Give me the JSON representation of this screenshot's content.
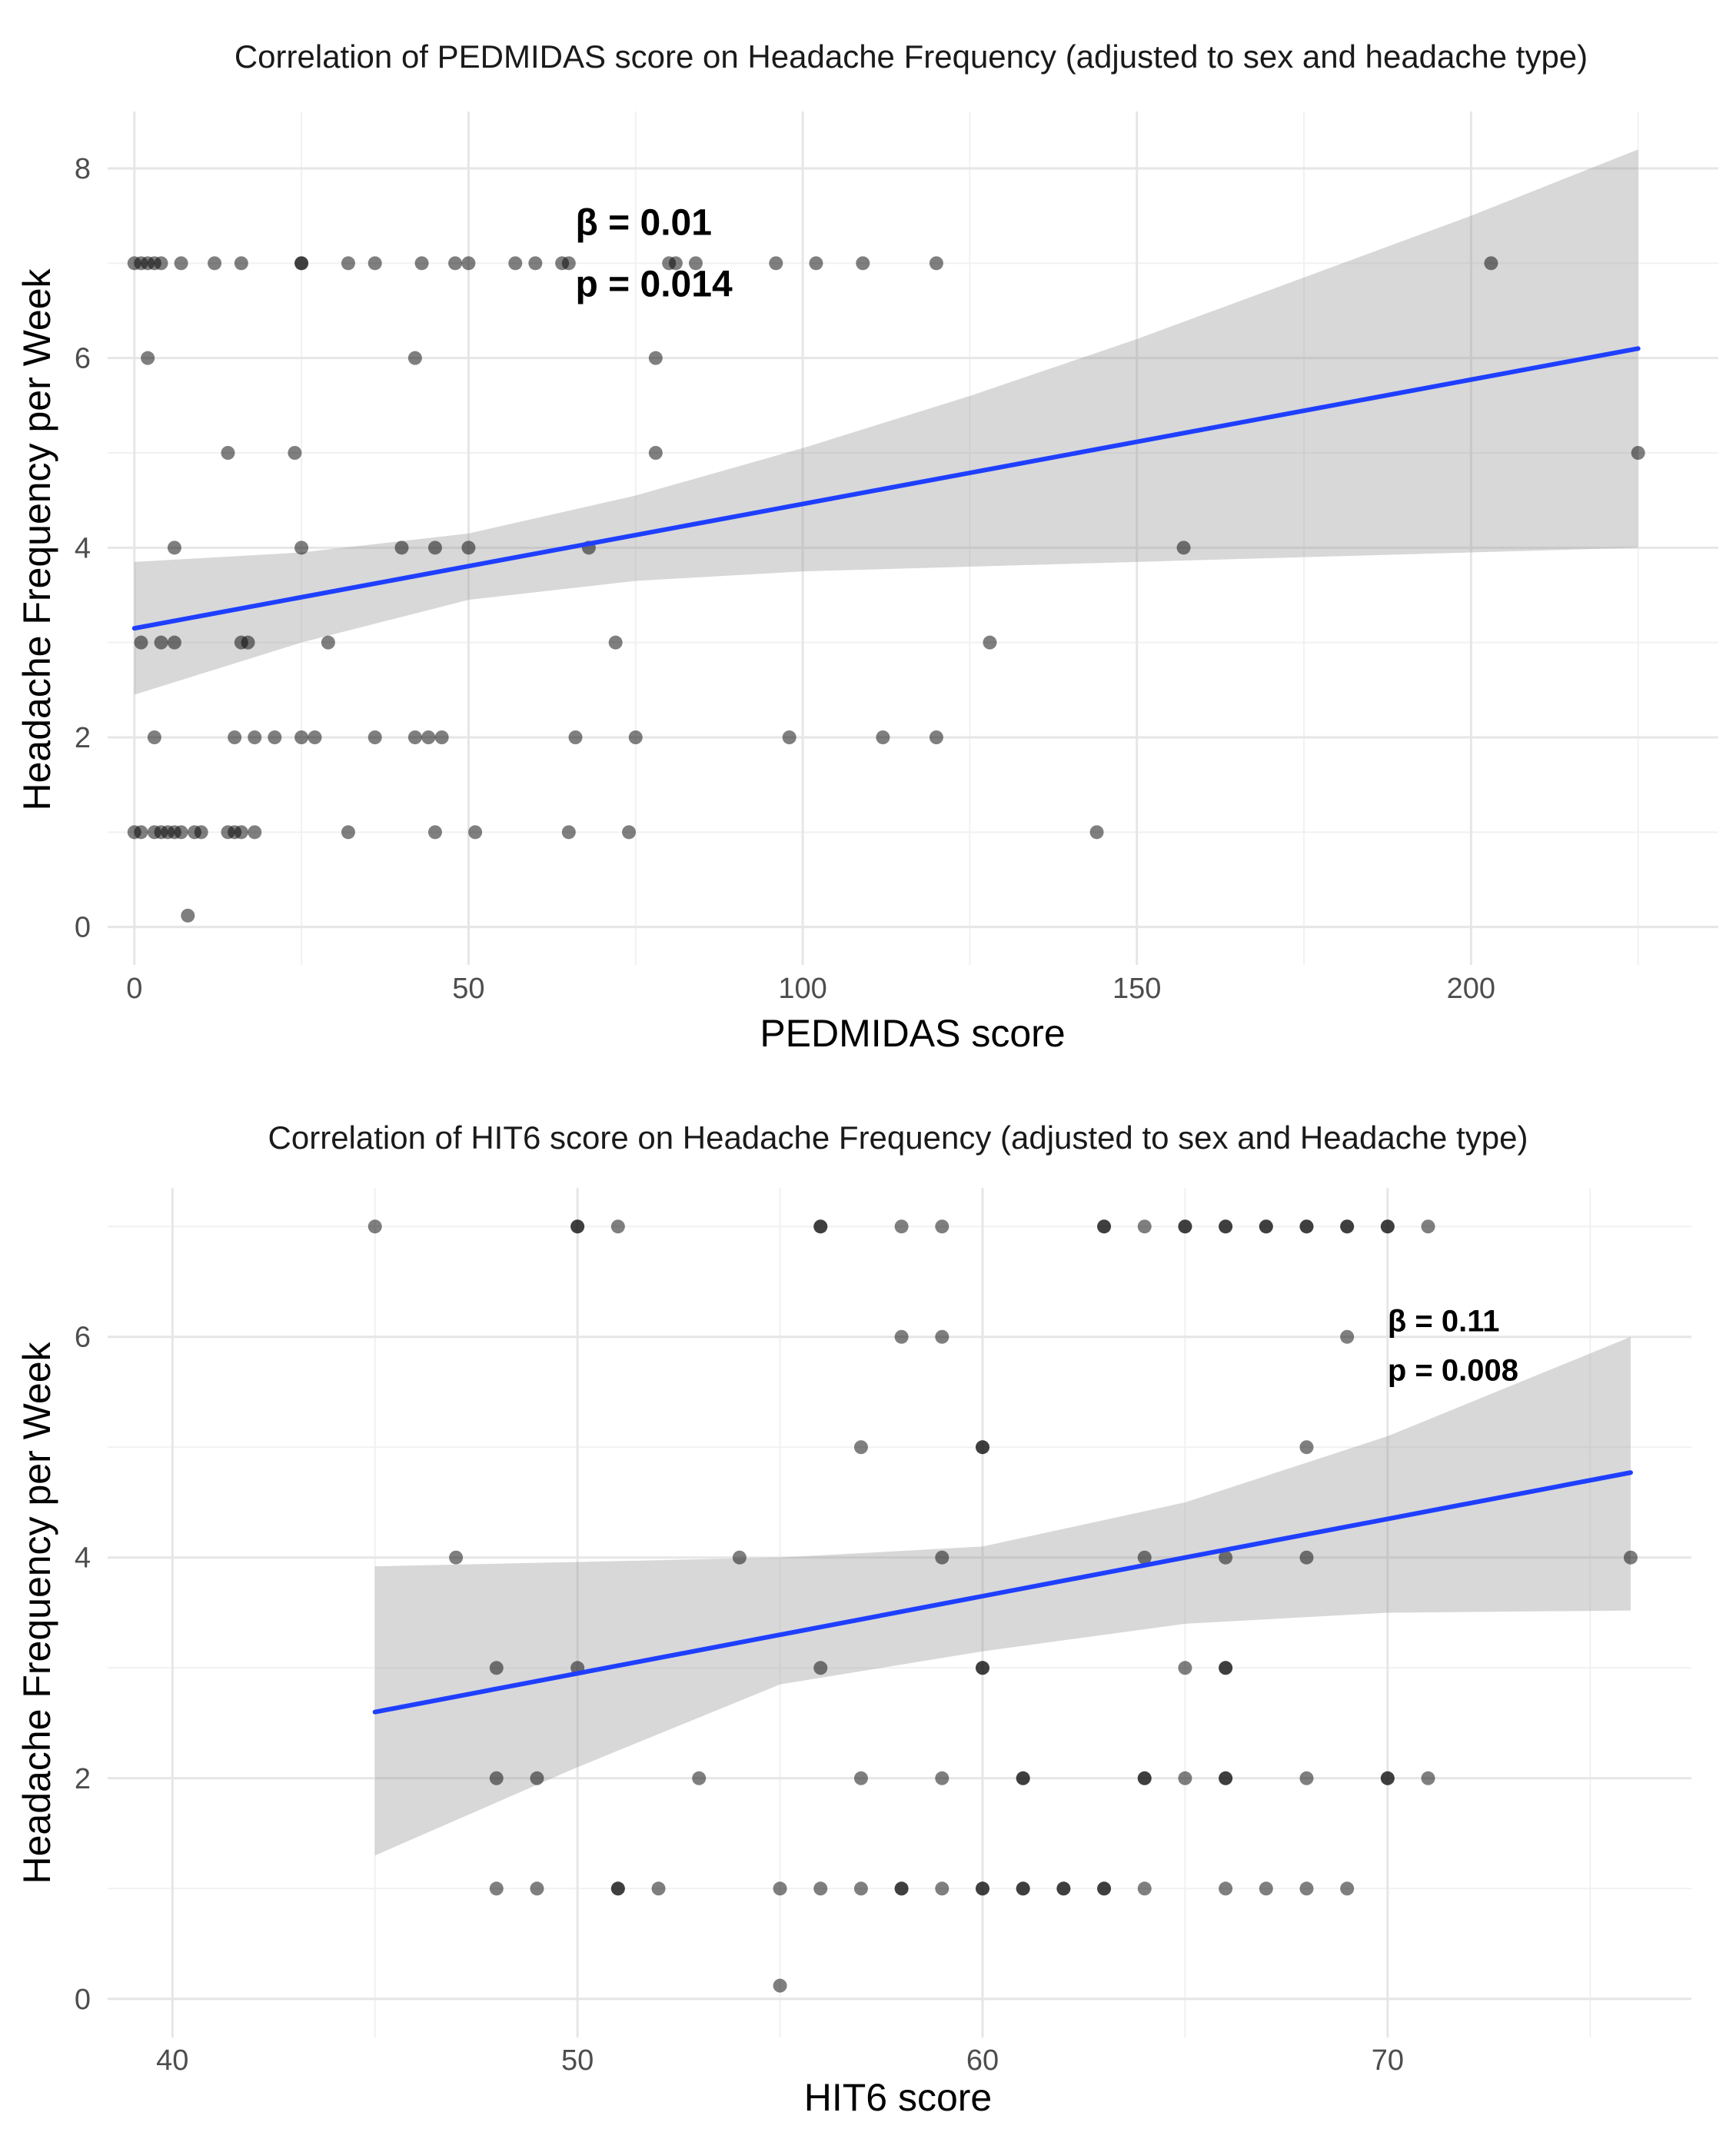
{
  "chart_data": [
    {
      "type": "scatter",
      "title": "Correlation of PEDMIDAS score on Headache Frequency (adjusted to sex and headache type)",
      "xlabel": "PEDMIDAS score",
      "ylabel": "Headache Frequency per Week",
      "xlim": [
        -4,
        237
      ],
      "ylim": [
        -0.4,
        8.6
      ],
      "x_ticks": [
        0,
        50,
        100,
        150,
        200
      ],
      "x_tick_labels": [
        "0",
        "50",
        "100",
        "150",
        "200"
      ],
      "y_ticks": [
        0,
        2,
        4,
        6,
        8
      ],
      "y_tick_labels": [
        "0",
        "2",
        "4",
        "6",
        "8"
      ],
      "annotation": {
        "x": 66,
        "y": 7.3,
        "lines": [
          "β = 0.01",
          "p = 0.014"
        ]
      },
      "fit_line": {
        "x": [
          0,
          225
        ],
        "y": [
          3.15,
          6.1
        ],
        "color": "#1f3fff"
      },
      "confidence_band": {
        "x": [
          0,
          25,
          50,
          75,
          100,
          125,
          150,
          175,
          200,
          225
        ],
        "upper": [
          3.85,
          3.95,
          4.15,
          4.55,
          5.05,
          5.6,
          6.2,
          6.85,
          7.5,
          8.2
        ],
        "lower": [
          2.45,
          3.0,
          3.45,
          3.65,
          3.75,
          3.8,
          3.85,
          3.9,
          3.95,
          4.0
        ]
      },
      "points": [
        [
          0,
          7
        ],
        [
          1,
          7
        ],
        [
          2,
          7
        ],
        [
          3,
          7
        ],
        [
          4,
          7
        ],
        [
          7,
          7
        ],
        [
          12,
          7
        ],
        [
          16,
          7
        ],
        [
          25,
          7
        ],
        [
          25,
          7
        ],
        [
          32,
          7
        ],
        [
          36,
          7
        ],
        [
          43,
          7
        ],
        [
          48,
          7
        ],
        [
          50,
          7
        ],
        [
          57,
          7
        ],
        [
          60,
          7
        ],
        [
          64,
          7
        ],
        [
          65,
          7
        ],
        [
          80,
          7
        ],
        [
          81,
          7
        ],
        [
          84,
          7
        ],
        [
          96,
          7
        ],
        [
          102,
          7
        ],
        [
          109,
          7
        ],
        [
          120,
          7
        ],
        [
          203,
          7
        ],
        [
          2,
          6
        ],
        [
          42,
          6
        ],
        [
          78,
          6
        ],
        [
          14,
          5
        ],
        [
          24,
          5
        ],
        [
          78,
          5
        ],
        [
          225,
          5
        ],
        [
          6,
          4
        ],
        [
          25,
          4
        ],
        [
          40,
          4
        ],
        [
          45,
          4
        ],
        [
          50,
          4
        ],
        [
          68,
          4
        ],
        [
          157,
          4
        ],
        [
          1,
          3
        ],
        [
          4,
          3
        ],
        [
          6,
          3
        ],
        [
          16,
          3
        ],
        [
          17,
          3
        ],
        [
          29,
          3
        ],
        [
          72,
          3
        ],
        [
          128,
          3
        ],
        [
          3,
          2
        ],
        [
          15,
          2
        ],
        [
          18,
          2
        ],
        [
          21,
          2
        ],
        [
          25,
          2
        ],
        [
          27,
          2
        ],
        [
          36,
          2
        ],
        [
          42,
          2
        ],
        [
          44,
          2
        ],
        [
          46,
          2
        ],
        [
          66,
          2
        ],
        [
          75,
          2
        ],
        [
          98,
          2
        ],
        [
          112,
          2
        ],
        [
          120,
          2
        ],
        [
          0,
          1
        ],
        [
          1,
          1
        ],
        [
          3,
          1
        ],
        [
          4,
          1
        ],
        [
          5,
          1
        ],
        [
          6,
          1
        ],
        [
          7,
          1
        ],
        [
          9,
          1
        ],
        [
          10,
          1
        ],
        [
          14,
          1
        ],
        [
          15,
          1
        ],
        [
          16,
          1
        ],
        [
          18,
          1
        ],
        [
          32,
          1
        ],
        [
          45,
          1
        ],
        [
          51,
          1
        ],
        [
          65,
          1
        ],
        [
          74,
          1
        ],
        [
          144,
          1
        ],
        [
          8,
          0.12
        ]
      ]
    },
    {
      "type": "scatter",
      "title": "Correlation of HIT6 score on Headache Frequency (adjusted to sex and Headache type)",
      "xlabel": "HIT6 score",
      "ylabel": "Headache Frequency per Week",
      "xlim": [
        38.4,
        77.5
      ],
      "ylim": [
        -0.35,
        7.35
      ],
      "x_ticks": [
        40,
        50,
        60,
        70
      ],
      "x_tick_labels": [
        "40",
        "50",
        "60",
        "70"
      ],
      "y_ticks": [
        0,
        2,
        4,
        6
      ],
      "y_tick_labels": [
        "0",
        "2",
        "4",
        "6"
      ],
      "annotation": {
        "x": 70,
        "y": 6.05,
        "lines": [
          "β = 0.11",
          "p = 0.008"
        ]
      },
      "fit_line": {
        "x": [
          45,
          76
        ],
        "y": [
          2.6,
          4.77
        ],
        "color": "#1f3fff"
      },
      "confidence_band": {
        "x": [
          45,
          50,
          55,
          60,
          65,
          70,
          76
        ],
        "upper": [
          3.92,
          3.96,
          4.0,
          4.1,
          4.5,
          5.1,
          6.0
        ],
        "lower": [
          1.3,
          2.1,
          2.85,
          3.15,
          3.4,
          3.5,
          3.52
        ]
      },
      "points": [
        [
          45,
          7
        ],
        [
          50,
          7
        ],
        [
          50,
          7
        ],
        [
          51,
          7
        ],
        [
          56,
          7
        ],
        [
          56,
          7
        ],
        [
          58,
          7
        ],
        [
          59,
          7
        ],
        [
          63,
          7
        ],
        [
          63,
          7
        ],
        [
          64,
          7
        ],
        [
          65,
          7
        ],
        [
          65,
          7
        ],
        [
          66,
          7
        ],
        [
          66,
          7
        ],
        [
          67,
          7
        ],
        [
          67,
          7
        ],
        [
          68,
          7
        ],
        [
          68,
          7
        ],
        [
          69,
          7
        ],
        [
          69,
          7
        ],
        [
          70,
          7
        ],
        [
          70,
          7
        ],
        [
          71,
          7
        ],
        [
          58,
          6
        ],
        [
          59,
          6
        ],
        [
          69,
          6
        ],
        [
          57,
          5
        ],
        [
          60,
          5
        ],
        [
          60,
          5
        ],
        [
          68,
          5
        ],
        [
          47,
          4
        ],
        [
          54,
          4
        ],
        [
          59,
          4
        ],
        [
          64,
          4
        ],
        [
          66,
          4
        ],
        [
          68,
          4
        ],
        [
          76,
          4
        ],
        [
          48,
          3
        ],
        [
          50,
          3
        ],
        [
          56,
          3
        ],
        [
          60,
          3
        ],
        [
          60,
          3
        ],
        [
          65,
          3
        ],
        [
          66,
          3
        ],
        [
          66,
          3
        ],
        [
          48,
          2
        ],
        [
          49,
          2
        ],
        [
          53,
          2
        ],
        [
          57,
          2
        ],
        [
          59,
          2
        ],
        [
          61,
          2
        ],
        [
          61,
          2
        ],
        [
          64,
          2
        ],
        [
          64,
          2
        ],
        [
          65,
          2
        ],
        [
          66,
          2
        ],
        [
          66,
          2
        ],
        [
          68,
          2
        ],
        [
          70,
          2
        ],
        [
          70,
          2
        ],
        [
          71,
          2
        ],
        [
          48,
          1
        ],
        [
          49,
          1
        ],
        [
          51,
          1
        ],
        [
          51,
          1
        ],
        [
          52,
          1
        ],
        [
          55,
          1
        ],
        [
          56,
          1
        ],
        [
          57,
          1
        ],
        [
          58,
          1
        ],
        [
          58,
          1
        ],
        [
          59,
          1
        ],
        [
          60,
          1
        ],
        [
          60,
          1
        ],
        [
          61,
          1
        ],
        [
          61,
          1
        ],
        [
          62,
          1
        ],
        [
          62,
          1
        ],
        [
          63,
          1
        ],
        [
          63,
          1
        ],
        [
          64,
          1
        ],
        [
          66,
          1
        ],
        [
          67,
          1
        ],
        [
          68,
          1
        ],
        [
          69,
          1
        ],
        [
          55,
          0.12
        ]
      ]
    }
  ]
}
